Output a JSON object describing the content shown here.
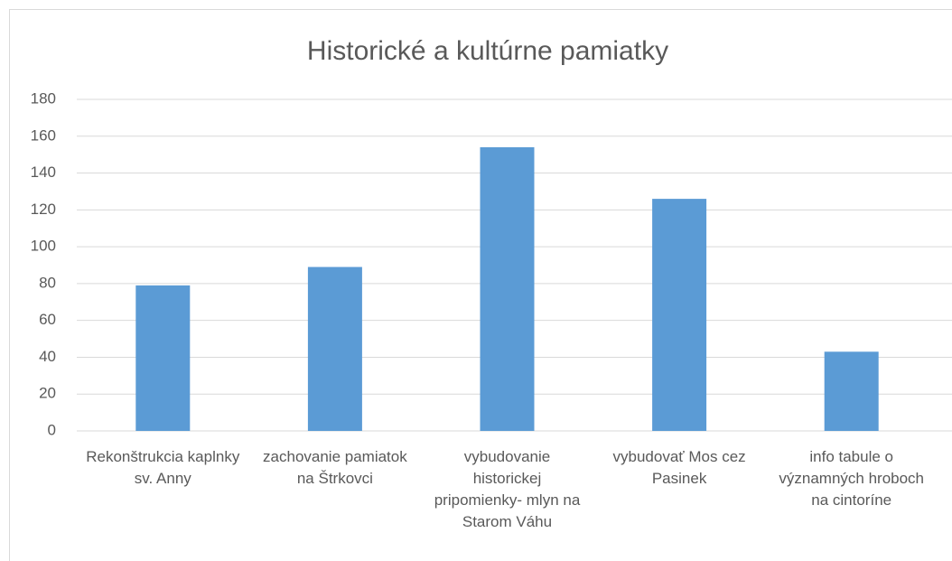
{
  "chart_data": {
    "type": "bar",
    "title": "Historické a kultúrne pamiatky",
    "categories": [
      "Rekonštrukcia kaplnky sv. Anny",
      "zachovanie pamiatok na Štrkovci",
      "vybudovanie historickej pripomienky- mlyn na Starom Váhu",
      "vybudovať Mos cez Pasinek",
      "info tabule o významných hroboch na cintoríne"
    ],
    "values": [
      79,
      89,
      154,
      126,
      43
    ],
    "color": "#5b9bd5",
    "ylim": [
      0,
      180
    ],
    "yticks": [
      0,
      20,
      40,
      60,
      80,
      100,
      120,
      140,
      160,
      180
    ],
    "grid": true
  }
}
